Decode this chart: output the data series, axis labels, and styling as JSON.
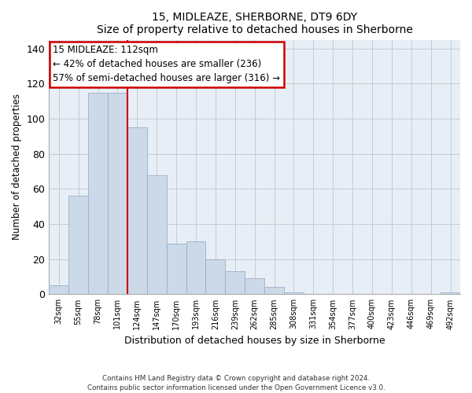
{
  "title": "15, MIDLEAZE, SHERBORNE, DT9 6DY",
  "subtitle": "Size of property relative to detached houses in Sherborne",
  "xlabel": "Distribution of detached houses by size in Sherborne",
  "ylabel": "Number of detached properties",
  "bar_labels": [
    "32sqm",
    "55sqm",
    "78sqm",
    "101sqm",
    "124sqm",
    "147sqm",
    "170sqm",
    "193sqm",
    "216sqm",
    "239sqm",
    "262sqm",
    "285sqm",
    "308sqm",
    "331sqm",
    "354sqm",
    "377sqm",
    "400sqm",
    "423sqm",
    "446sqm",
    "469sqm",
    "492sqm"
  ],
  "bar_values": [
    5,
    56,
    115,
    115,
    95,
    68,
    29,
    30,
    20,
    13,
    9,
    4,
    1,
    0,
    0,
    0,
    0,
    0,
    0,
    0,
    1
  ],
  "bar_color": "#ccd9e8",
  "bar_edge_color": "#9ab0c8",
  "vline_x": 3.5,
  "vline_color": "#cc0000",
  "ylim": [
    0,
    145
  ],
  "yticks": [
    0,
    20,
    40,
    60,
    80,
    100,
    120,
    140
  ],
  "annotation_title": "15 MIDLEAZE: 112sqm",
  "annotation_line1": "← 42% of detached houses are smaller (236)",
  "annotation_line2": "57% of semi-detached houses are larger (316) →",
  "footer_line1": "Contains HM Land Registry data © Crown copyright and database right 2024.",
  "footer_line2": "Contains public sector information licensed under the Open Government Licence v3.0.",
  "plot_bg": "#e8eef5",
  "grid_color": "#c0ccd8"
}
